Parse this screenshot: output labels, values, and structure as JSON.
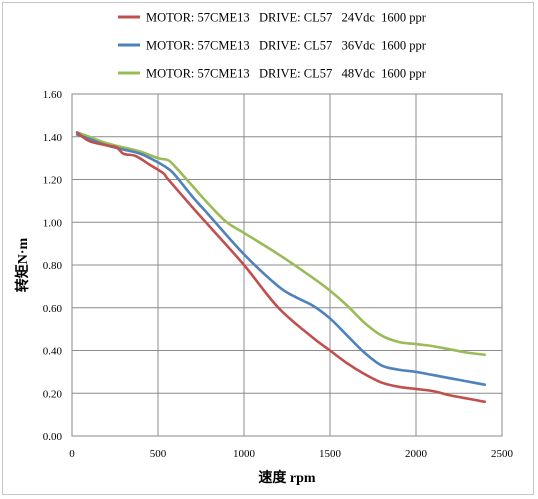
{
  "chart_data": {
    "type": "line",
    "title": "",
    "xlabel": "速度 rpm",
    "ylabel": "转矩N·m",
    "xlim": [
      0,
      2500
    ],
    "ylim": [
      0,
      1.6
    ],
    "x_ticks": [
      "0",
      "500",
      "1000",
      "1500",
      "2000",
      "2500"
    ],
    "y_ticks": [
      "0.00",
      "0.20",
      "0.40",
      "0.60",
      "0.80",
      "1.00",
      "1.20",
      "1.40",
      "1.60"
    ],
    "grid": true,
    "legend_position": "top",
    "series": [
      {
        "name": "MOTOR: 57CME13   DRIVE: CL57   24Vdc  1600 ppr",
        "color": "#c0504d",
        "x": [
          30,
          100,
          200,
          260,
          300,
          370,
          450,
          530,
          560,
          700,
          800,
          1000,
          1200,
          1400,
          1500,
          1600,
          1700,
          1800,
          1900,
          2000,
          2100,
          2200,
          2300,
          2400
        ],
        "y": [
          1.42,
          1.38,
          1.36,
          1.35,
          1.32,
          1.31,
          1.27,
          1.23,
          1.2,
          1.07,
          0.98,
          0.8,
          0.6,
          0.46,
          0.4,
          0.34,
          0.29,
          0.25,
          0.23,
          0.22,
          0.21,
          0.19,
          0.175,
          0.16
        ]
      },
      {
        "name": "MOTOR: 57CME13   DRIVE: CL57   36Vdc  1600 ppr",
        "color": "#4f81bd",
        "x": [
          30,
          100,
          200,
          300,
          400,
          500,
          560,
          600,
          700,
          800,
          1000,
          1200,
          1300,
          1400,
          1500,
          1600,
          1700,
          1800,
          1900,
          2000,
          2100,
          2200,
          2300,
          2400
        ],
        "y": [
          1.41,
          1.39,
          1.36,
          1.34,
          1.32,
          1.28,
          1.25,
          1.22,
          1.12,
          1.03,
          0.85,
          0.7,
          0.65,
          0.61,
          0.55,
          0.47,
          0.39,
          0.33,
          0.31,
          0.3,
          0.285,
          0.27,
          0.255,
          0.24
        ]
      },
      {
        "name": "MOTOR: 57CME13   DRIVE: CL57   48Vdc  1600 ppr",
        "color": "#9bbb59",
        "x": [
          30,
          100,
          200,
          300,
          400,
          500,
          560,
          600,
          700,
          800,
          900,
          1000,
          1200,
          1400,
          1500,
          1600,
          1700,
          1800,
          1900,
          2000,
          2100,
          2200,
          2300,
          2400
        ],
        "y": [
          1.42,
          1.4,
          1.37,
          1.35,
          1.33,
          1.3,
          1.29,
          1.26,
          1.17,
          1.08,
          1.0,
          0.95,
          0.85,
          0.74,
          0.68,
          0.61,
          0.53,
          0.47,
          0.44,
          0.43,
          0.42,
          0.405,
          0.39,
          0.38
        ]
      }
    ]
  }
}
